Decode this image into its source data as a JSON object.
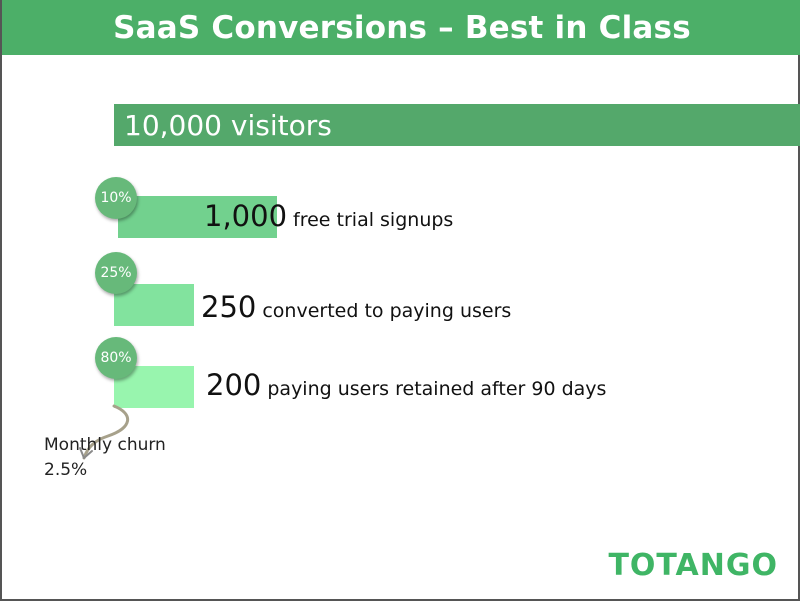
{
  "title": "SaaS Conversions – Best in Class",
  "brand": "TOTANGO",
  "colors": {
    "title_bar": "#4caf68",
    "top_bar": "#54a86b",
    "badge": "#67b97a",
    "bar_1": "#72d18e",
    "bar_2": "#82e39e",
    "bar_3": "#98f5ae",
    "logo": "#3fb565"
  },
  "chart_data": {
    "type": "bar",
    "title": "SaaS Conversions – Best in Class",
    "categories": [
      "visitors",
      "free trial signups",
      "converted to paying users",
      "paying users retained after 90 days"
    ],
    "values": [
      10000,
      1000,
      250,
      200
    ],
    "value_labels": [
      "10,000",
      "1,000",
      "250",
      "200"
    ],
    "stage_rates": [
      "",
      "10%",
      "25%",
      "80%"
    ],
    "annotation": {
      "line1": "Monthly churn",
      "line2": "2.5%"
    }
  }
}
